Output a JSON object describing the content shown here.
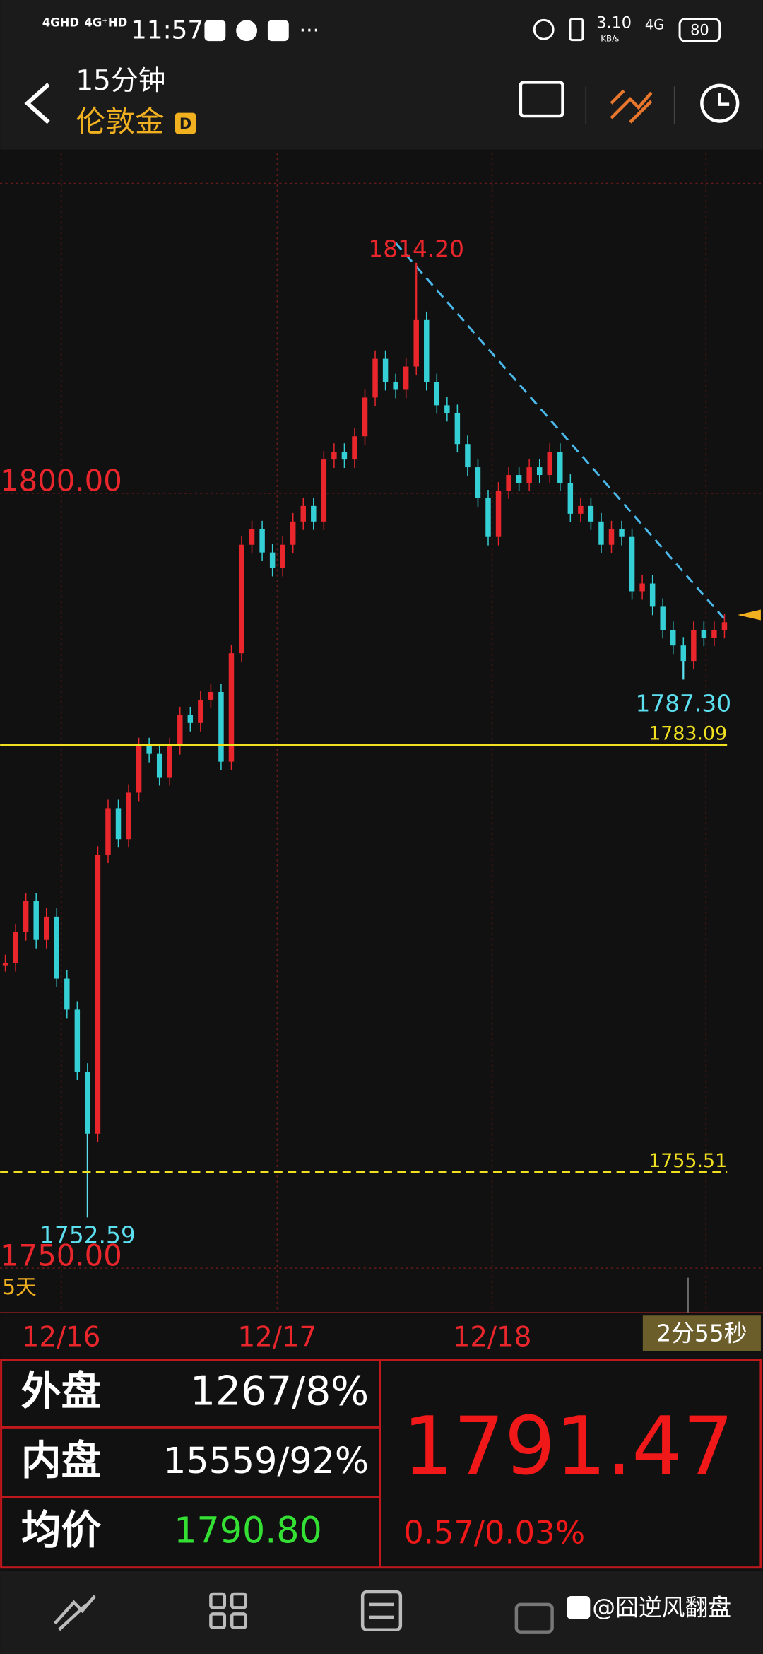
{
  "status_bar": {
    "network_1": "4GHD",
    "network_2": "4G⁺HD",
    "time": "11:57",
    "speed": "3.10",
    "speed_unit": "KB/s",
    "network_3": "4G",
    "battery": "80"
  },
  "header": {
    "interval": "15分钟",
    "symbol": "伦敦金",
    "badge": "D"
  },
  "chart_data": {
    "type": "candlestick",
    "closes": [
      1769,
      1771,
      1773,
      1770.5,
      1772,
      1768,
      1766,
      1762,
      1758,
      1776,
      1779,
      1777,
      1780,
      1783,
      1782.5,
      1781,
      1783,
      1785,
      1784.5,
      1786,
      1786.5,
      1782,
      1789,
      1796,
      1797,
      1795.5,
      1794.5,
      1796,
      1797.5,
      1798.5,
      1797.5,
      1801.5,
      1802,
      1801.5,
      1803,
      1805.5,
      1808,
      1806.5,
      1806,
      1807.5,
      1810.5,
      1806.5,
      1805,
      1804.5,
      1802.5,
      1801,
      1799,
      1796.5,
      1799.5,
      1800.5,
      1800,
      1801,
      1800.5,
      1802,
      1800,
      1798,
      1798.5,
      1797.5,
      1796,
      1797,
      1796.5,
      1793,
      1793.5,
      1792,
      1790.5,
      1789.5,
      1788.5,
      1790.5,
      1790,
      1790.5,
      1791
    ],
    "ylim": [
      1746.46,
      1821.29
    ],
    "yticks": [
      {
        "value": 1800,
        "label": "1800.00"
      },
      {
        "value": 1750,
        "label": "1750.00"
      }
    ],
    "date_labels": [
      "12/16",
      "12/17",
      "12/18"
    ],
    "up_color": "#e8262c",
    "down_color": "#35d0d6",
    "annotations": [
      {
        "value": 1814.2,
        "label": "1814.20",
        "color": "#e8262c"
      },
      {
        "value": 1787.3,
        "label": "1787.30",
        "color": "#5ce0f0"
      },
      {
        "value": 1752.59,
        "label": "1752.59",
        "color": "#5ce0f0"
      }
    ],
    "levels": [
      {
        "value": 1783.09,
        "label": "1783.09",
        "style": "solid"
      },
      {
        "value": 1755.51,
        "label": "1755.51",
        "style": "dashed"
      }
    ],
    "range_label": "5天",
    "countdown": "2分55秒"
  },
  "quote": {
    "outer_label": "外盘",
    "outer_value": "1267/8%",
    "inner_label": "内盘",
    "inner_value": "15559/92%",
    "avg_label": "均价",
    "avg_value": "1790.80",
    "price": 1791.47,
    "price_label": "1791.47",
    "change": "0.57/0.03%"
  },
  "watermark": "@囧逆风翻盘"
}
